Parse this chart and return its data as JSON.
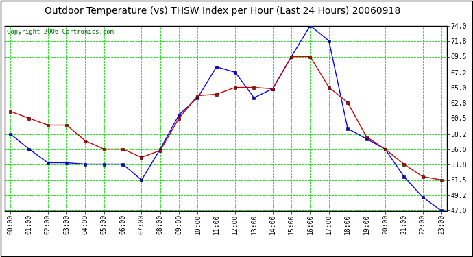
{
  "title": "Outdoor Temperature (vs) THSW Index per Hour (Last 24 Hours) 20060918",
  "copyright": "Copyright 2006 Cartronics.com",
  "hours": [
    "00:00",
    "01:00",
    "02:00",
    "03:00",
    "04:00",
    "05:00",
    "06:00",
    "07:00",
    "08:00",
    "09:00",
    "10:00",
    "11:00",
    "12:00",
    "13:00",
    "14:00",
    "15:00",
    "16:00",
    "17:00",
    "18:00",
    "19:00",
    "20:00",
    "21:00",
    "22:00",
    "23:00"
  ],
  "blue_data": [
    58.2,
    56.0,
    54.0,
    54.0,
    53.8,
    53.8,
    53.8,
    51.5,
    56.0,
    61.0,
    63.5,
    68.0,
    67.2,
    63.5,
    64.8,
    69.5,
    74.0,
    71.8,
    59.0,
    57.5,
    56.0,
    52.0,
    49.0,
    47.0
  ],
  "red_data": [
    61.5,
    60.5,
    59.5,
    59.5,
    57.2,
    56.0,
    56.0,
    54.8,
    55.8,
    60.5,
    63.8,
    64.0,
    65.0,
    65.0,
    64.8,
    69.5,
    69.5,
    65.0,
    62.8,
    57.8,
    56.0,
    53.8,
    52.0,
    51.5
  ],
  "ylim_min": 47.0,
  "ylim_max": 74.0,
  "yticks": [
    47.0,
    49.2,
    51.5,
    53.8,
    56.0,
    58.2,
    60.5,
    62.8,
    65.0,
    67.2,
    69.5,
    71.8,
    74.0
  ],
  "bg_color": "#ffffff",
  "plot_bg_color": "#ffffff",
  "grid_color": "#00dd00",
  "blue_line_color": "#0000ff",
  "red_line_color": "#cc0000",
  "title_color": "#000000",
  "border_color": "#000000",
  "title_fontsize": 10,
  "tick_fontsize": 7,
  "copyright_fontsize": 6.5
}
